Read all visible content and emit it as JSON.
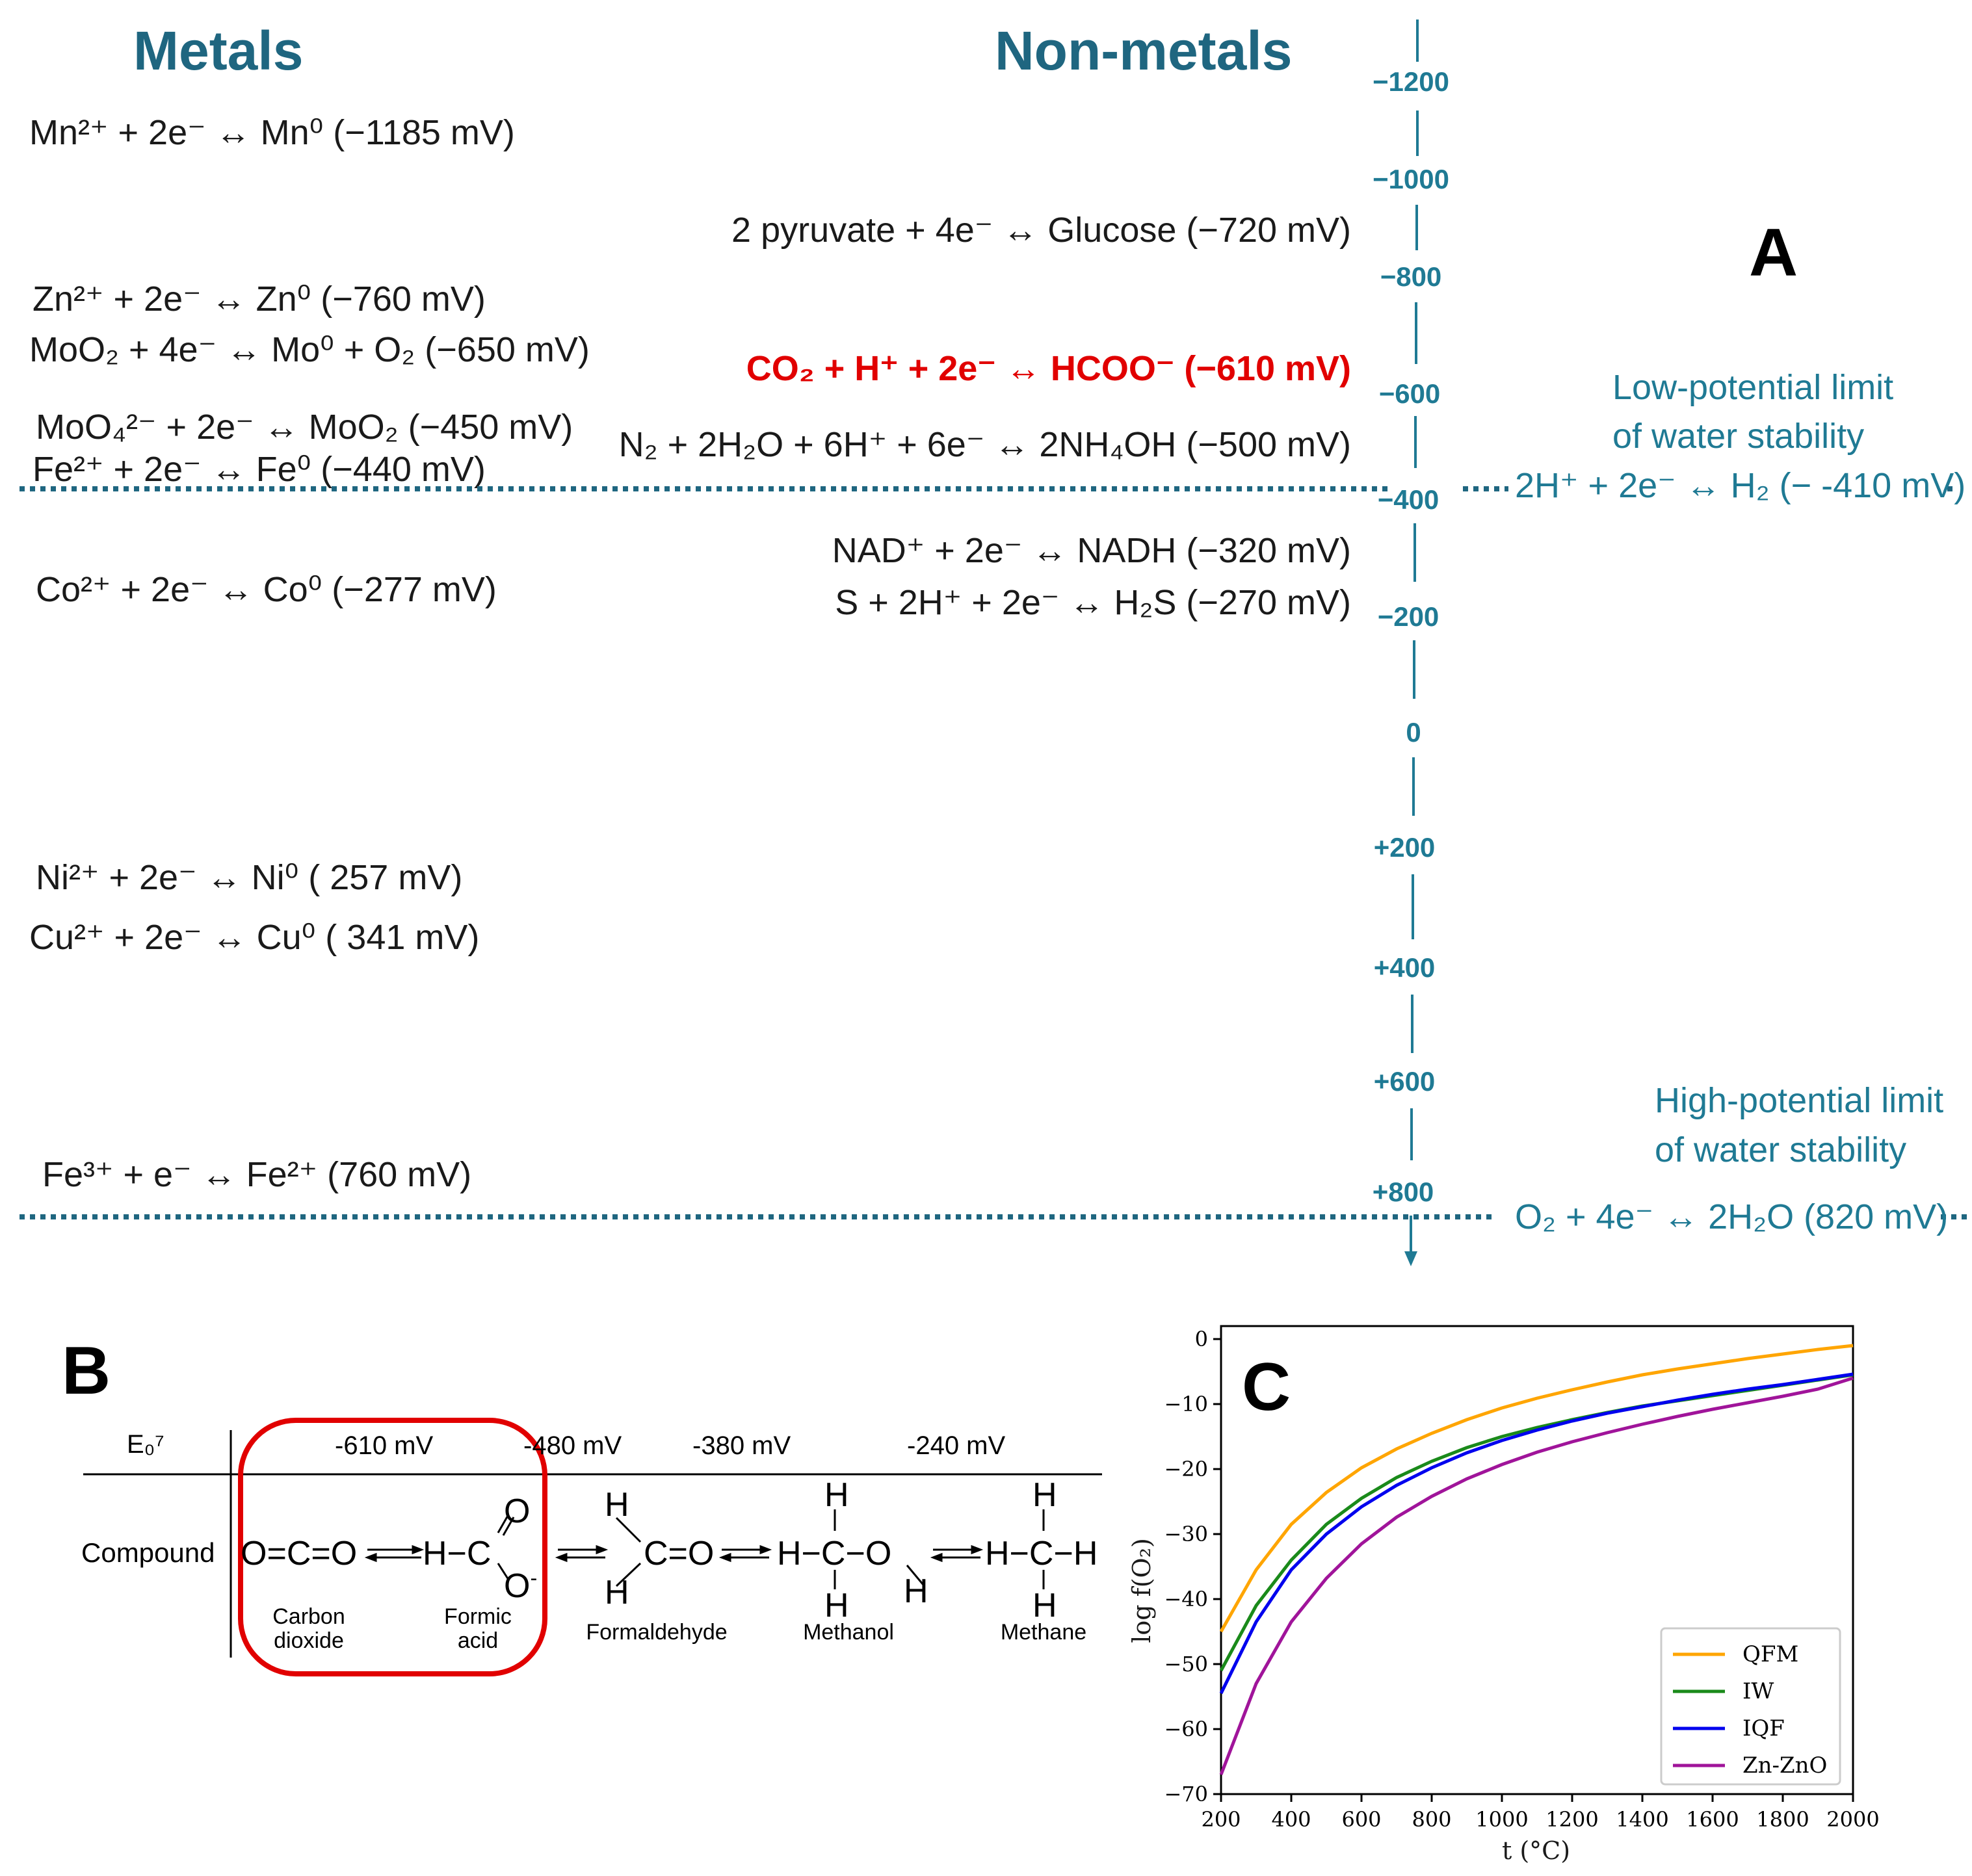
{
  "panel_a": {
    "label": "A",
    "headers": {
      "metals": "Metals",
      "nonmetals": "Non-metals"
    },
    "metals": [
      "Mn²⁺ + 2e⁻ ↔ Mn⁰ (−1185 mV)",
      "Zn²⁺ + 2e⁻ ↔ Zn⁰ (−760 mV)",
      "MoO₂ + 4e⁻ ↔ Mo⁰ + O₂ (−650 mV)",
      "MoO₄²⁻ + 2e⁻ ↔ MoO₂ (−450 mV)",
      "Fe²⁺ + 2e⁻ ↔ Fe⁰ (−440 mV)",
      "Co²⁺ + 2e⁻ ↔ Co⁰ (−277 mV)",
      "Ni²⁺ + 2e⁻ ↔ Ni⁰ ( 257 mV)",
      "Cu²⁺ + 2e⁻ ↔ Cu⁰ ( 341 mV)",
      "Fe³⁺ + e⁻ ↔ Fe²⁺ (760 mV)"
    ],
    "nonmetals": [
      "2 pyruvate + 4e⁻ ↔ Glucose (−720 mV)",
      "CO₂ + H⁺ + 2e⁻ ↔ HCOO⁻ (−610 mV)",
      "N₂ + 2H₂O + 6H⁺ + 6e⁻ ↔ 2NH₄OH (−500 mV)",
      "NAD⁺ + 2e⁻ ↔ NADH (−320 mV)",
      "S + 2H⁺ + 2e⁻ ↔ H₂S (−270 mV)"
    ],
    "highlight_color": "#e10000",
    "axis_color": "#1f7a94",
    "axis_ticks": [
      "−1200",
      "−1000",
      "−800",
      "−600",
      "−400",
      "−200",
      "0",
      "+200",
      "+400",
      "+600",
      "+800"
    ],
    "low_limit": {
      "title_line1": "Low-potential limit",
      "title_line2": "of water stability",
      "reaction": "2H⁺ + 2e⁻ ↔ H₂ (− -410 mV)"
    },
    "high_limit": {
      "title_line1": "High-potential limit",
      "title_line2": "of water stability",
      "reaction": "O₂ + 4e⁻ ↔ 2H₂O (820 mV)"
    }
  },
  "panel_b": {
    "label": "B",
    "row_header_potential": "E₀⁷",
    "row_header_compound": "Compound",
    "potentials": [
      "-610 mV",
      "-480 mV",
      "-380 mV",
      "-240 mV"
    ],
    "compounds": [
      {
        "name_line1": "Carbon",
        "name_line2": "dioxide"
      },
      {
        "name_line1": "Formic",
        "name_line2": "acid"
      },
      {
        "name_line1": "Formaldehyde",
        "name_line2": ""
      },
      {
        "name_line1": "Methanol",
        "name_line2": ""
      },
      {
        "name_line1": "Methane",
        "name_line2": ""
      }
    ],
    "highlight_color": "#e10000"
  },
  "panel_c": {
    "label": "C",
    "chart_data": {
      "type": "line",
      "xlabel": "t (°C)",
      "ylabel": "log f(O₂)",
      "xlim": [
        200,
        2000
      ],
      "ylim": [
        -70,
        2
      ],
      "xticks": [
        200,
        400,
        600,
        800,
        1000,
        1200,
        1400,
        1600,
        1800,
        2000
      ],
      "yticks": [
        0,
        -10,
        -20,
        -30,
        -40,
        -50,
        -60,
        -70
      ],
      "legend_position": "lower-right",
      "grid": false,
      "x": [
        200,
        300,
        400,
        500,
        600,
        700,
        800,
        900,
        1000,
        1100,
        1200,
        1300,
        1400,
        1500,
        1600,
        1700,
        1800,
        1900,
        2000
      ],
      "series": [
        {
          "name": "QFM",
          "color": "#ffa500",
          "values": [
            -45,
            -35.5,
            -28.5,
            -23.6,
            -19.8,
            -16.9,
            -14.5,
            -12.4,
            -10.6,
            -9.1,
            -7.8,
            -6.6,
            -5.5,
            -4.6,
            -3.8,
            -3.0,
            -2.3,
            -1.6,
            -1.0
          ]
        },
        {
          "name": "IW",
          "color": "#1a8a1a",
          "values": [
            -51,
            -41,
            -34,
            -28.5,
            -24.5,
            -21.3,
            -18.8,
            -16.7,
            -15.0,
            -13.6,
            -12.4,
            -11.3,
            -10.3,
            -9.5,
            -8.7,
            -7.9,
            -7.1,
            -6.3,
            -5.5
          ]
        },
        {
          "name": "IQF",
          "color": "#0000ee",
          "values": [
            -54.5,
            -43.5,
            -35.5,
            -30,
            -25.8,
            -22.5,
            -19.8,
            -17.5,
            -15.6,
            -14.0,
            -12.6,
            -11.4,
            -10.4,
            -9.4,
            -8.5,
            -7.7,
            -7.0,
            -6.2,
            -5.4
          ]
        },
        {
          "name": "Zn-ZnO",
          "color": "#a0149a",
          "values": [
            -67,
            -53,
            -43.5,
            -36.8,
            -31.5,
            -27.4,
            -24.2,
            -21.5,
            -19.3,
            -17.4,
            -15.8,
            -14.4,
            -13.1,
            -11.9,
            -10.8,
            -9.8,
            -8.8,
            -7.7,
            -6.0
          ]
        }
      ]
    }
  }
}
